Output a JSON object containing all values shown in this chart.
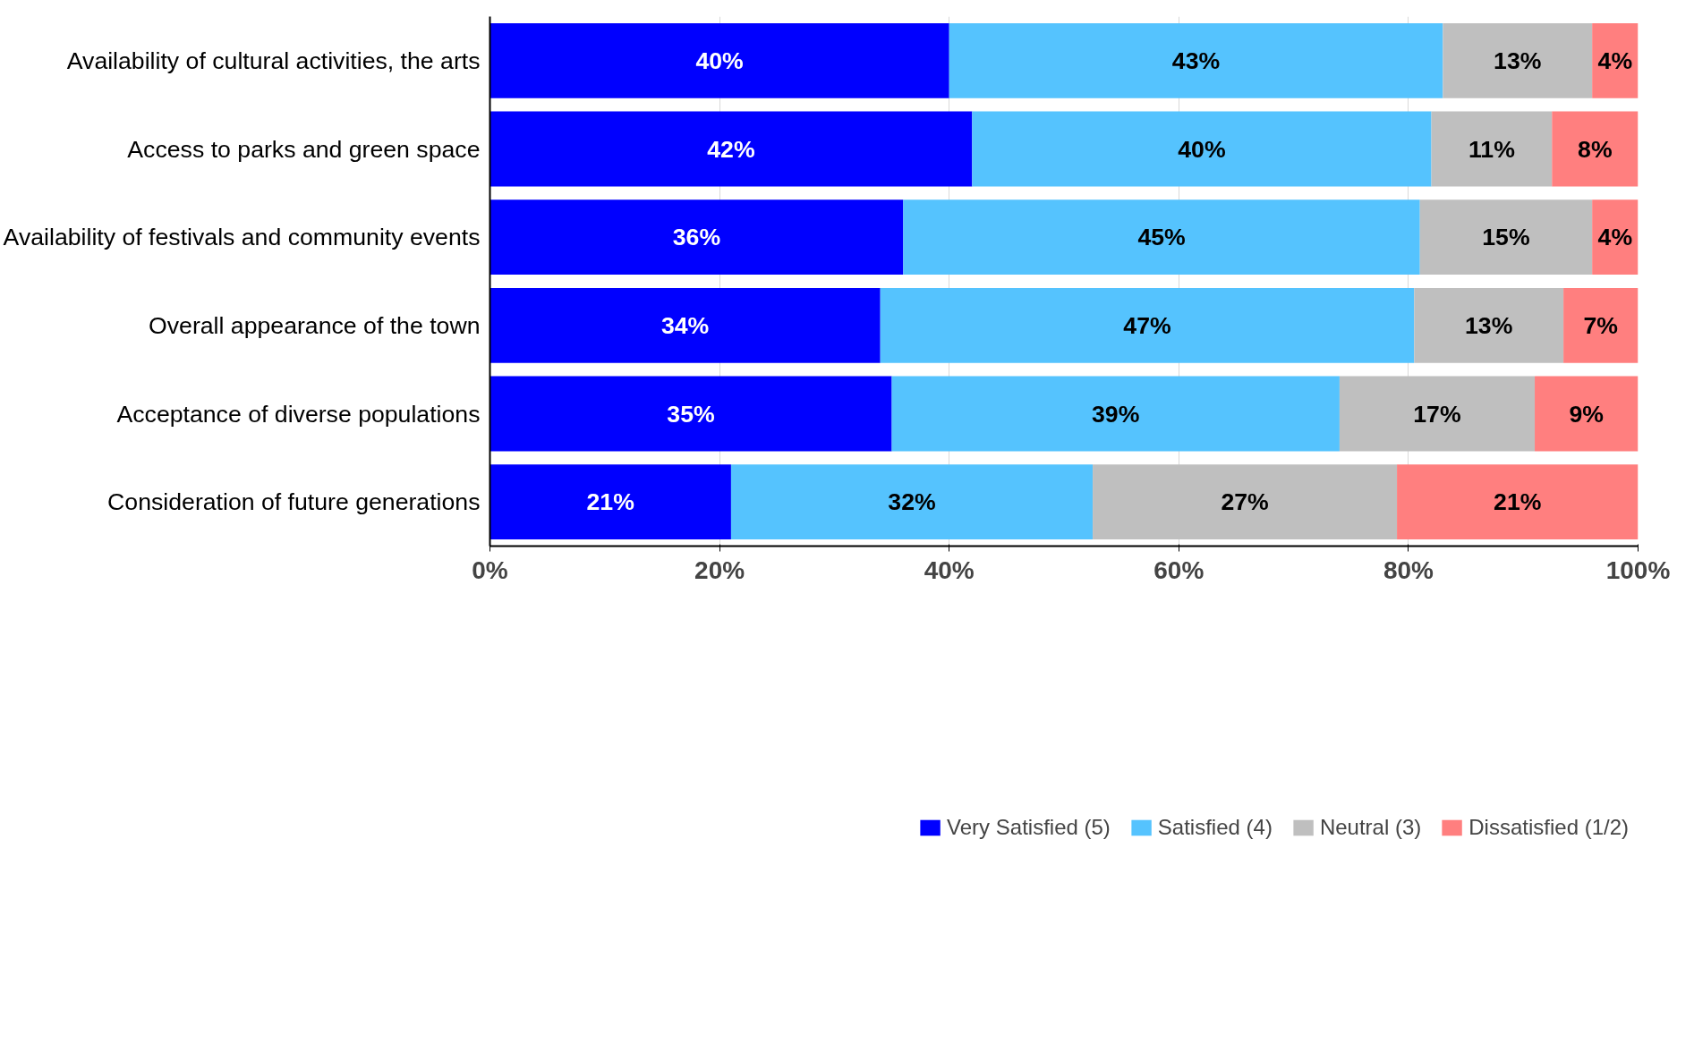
{
  "chart_data": {
    "type": "bar",
    "orientation": "horizontal",
    "stacked": true,
    "categories": [
      "Availability of cultural activities, the arts",
      "Access to parks and green space",
      "Availability of festivals and community events",
      "Overall appearance of the town",
      "Acceptance of diverse populations",
      "Consideration of future generations"
    ],
    "series": [
      {
        "name": "Very Satisfied (5)",
        "color": "#0000ff",
        "values": [
          40,
          42,
          36,
          34,
          35,
          21
        ],
        "value_labels": [
          "40%",
          "42%",
          "36%",
          "34%",
          "35%",
          "21%"
        ]
      },
      {
        "name": "Satisfied (4)",
        "color": "#55c3fe",
        "values": [
          43,
          40,
          45,
          46.5,
          39,
          31.5
        ],
        "value_labels": [
          "43%",
          "40%",
          "45%",
          "47%",
          "39%",
          "32%"
        ]
      },
      {
        "name": "Neutral (3)",
        "color": "#bfbfbf",
        "values": [
          13,
          10.5,
          15,
          13,
          17,
          26.5
        ],
        "value_labels": [
          "13%",
          "11%",
          "15%",
          "13%",
          "17%",
          "27%"
        ]
      },
      {
        "name": "Dissatisfied (1/2)",
        "color": "#ff7f7f",
        "values": [
          4,
          7.5,
          4,
          6.5,
          9,
          21
        ],
        "value_labels": [
          "4%",
          "8%",
          "4%",
          "7%",
          "9%",
          "21%"
        ]
      }
    ],
    "xlim": [
      0,
      100
    ],
    "xticks": [
      {
        "value": 0,
        "label": "0%"
      },
      {
        "value": 20,
        "label": "20%"
      },
      {
        "value": 40,
        "label": "40%"
      },
      {
        "value": 60,
        "label": "60%"
      },
      {
        "value": 80,
        "label": "80%"
      },
      {
        "value": 100,
        "label": "100%"
      }
    ],
    "grid": "x",
    "legend": "bottom right"
  }
}
